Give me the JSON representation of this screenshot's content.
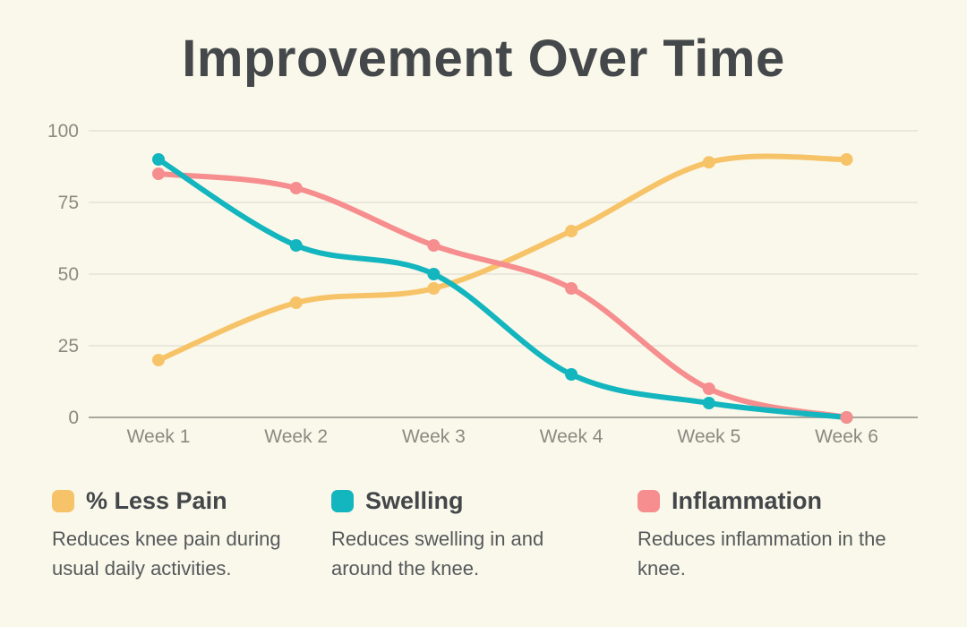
{
  "title": "Improvement Over Time",
  "colors": {
    "background": "#faf8ea",
    "title_text": "#45484a",
    "tick_text": "#8b8a82",
    "grid_line": "#e5e3d8",
    "axis_line": "#a9a79e",
    "legend_label": "#43474a",
    "legend_desc": "#55595b"
  },
  "chart_data": {
    "type": "line",
    "title": "Improvement Over Time",
    "xlabel": "",
    "ylabel": "",
    "ylim": [
      0,
      100
    ],
    "yticks": [
      100,
      75,
      50,
      25,
      0
    ],
    "grid": true,
    "legend_position": "bottom",
    "categories": [
      "Week 1",
      "Week 2",
      "Week 3",
      "Week 4",
      "Week 5",
      "Week 6"
    ],
    "series": [
      {
        "name": "% Less Pain",
        "color": "#f7c368",
        "values": [
          20,
          40,
          45,
          65,
          89,
          90
        ],
        "description": "Reduces knee pain during usual daily activities."
      },
      {
        "name": "Swelling",
        "color": "#13b5bf",
        "values": [
          90,
          60,
          50,
          15,
          5,
          0
        ],
        "description": "Reduces swelling in and around the knee."
      },
      {
        "name": "Inflammation",
        "color": "#f68d8e",
        "values": [
          85,
          80,
          60,
          45,
          10,
          0
        ],
        "description": "Reduces inflammation in the knee."
      }
    ]
  }
}
